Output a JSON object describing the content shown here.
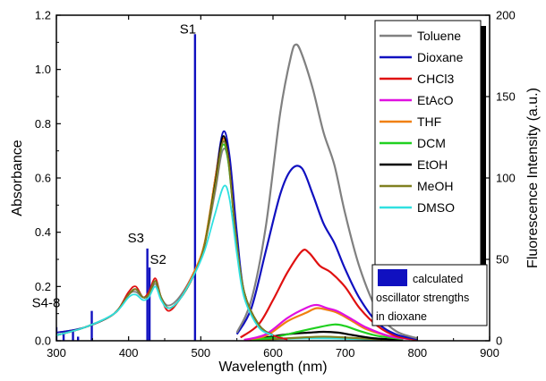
{
  "chart_data": {
    "type": "line",
    "xlabel": "Wavelength (nm)",
    "ylabel": "Absorbance",
    "y2label": "Fluorescence Intensity (a.u.)",
    "xlim": [
      300,
      900
    ],
    "ylim": [
      0,
      1.2
    ],
    "y2lim": [
      0,
      200
    ],
    "x_ticks": [
      300,
      400,
      500,
      600,
      700,
      800,
      900
    ],
    "x_tick_labels": [
      "300",
      "400",
      "500",
      "600",
      "700",
      "800",
      "900"
    ],
    "y_ticks": [
      0,
      0.2,
      0.4,
      0.6,
      0.8,
      1.0,
      1.2
    ],
    "y_tick_labels": [
      "0.0",
      "0.2",
      "0.4",
      "0.6",
      "0.8",
      "1.0",
      "1.2"
    ],
    "y2_ticks": [
      0,
      50,
      100,
      150,
      200
    ],
    "y2_tick_labels": [
      "0",
      "50",
      "100",
      "150",
      "200"
    ],
    "grid": false,
    "legend_position": "top-right",
    "series": [
      {
        "name": "Toluene",
        "color": "#808080",
        "absorption": [
          [
            300,
            0.03
          ],
          [
            340,
            0.05
          ],
          [
            380,
            0.1
          ],
          [
            400,
            0.17
          ],
          [
            410,
            0.18
          ],
          [
            420,
            0.16
          ],
          [
            428,
            0.17
          ],
          [
            437,
            0.21
          ],
          [
            445,
            0.16
          ],
          [
            455,
            0.13
          ],
          [
            470,
            0.16
          ],
          [
            490,
            0.25
          ],
          [
            505,
            0.35
          ],
          [
            520,
            0.55
          ],
          [
            530,
            0.7
          ],
          [
            538,
            0.66
          ],
          [
            548,
            0.4
          ],
          [
            560,
            0.18
          ],
          [
            580,
            0.06
          ],
          [
            600,
            0.02
          ],
          [
            620,
            0.005
          ]
        ],
        "fluorescence": [
          [
            550,
            5
          ],
          [
            570,
            25
          ],
          [
            590,
            70
          ],
          [
            610,
            140
          ],
          [
            625,
            175
          ],
          [
            632,
            182
          ],
          [
            640,
            176
          ],
          [
            655,
            155
          ],
          [
            670,
            128
          ],
          [
            685,
            108
          ],
          [
            700,
            78
          ],
          [
            720,
            45
          ],
          [
            745,
            18
          ],
          [
            770,
            6
          ],
          [
            800,
            1.5
          ]
        ]
      },
      {
        "name": "Dioxane",
        "color": "#1010c0",
        "absorption": [
          [
            300,
            0.03
          ],
          [
            340,
            0.05
          ],
          [
            380,
            0.1
          ],
          [
            400,
            0.17
          ],
          [
            410,
            0.19
          ],
          [
            420,
            0.16
          ],
          [
            428,
            0.17
          ],
          [
            437,
            0.22
          ],
          [
            445,
            0.16
          ],
          [
            455,
            0.12
          ],
          [
            470,
            0.15
          ],
          [
            490,
            0.25
          ],
          [
            505,
            0.35
          ],
          [
            520,
            0.6
          ],
          [
            531,
            0.77
          ],
          [
            540,
            0.68
          ],
          [
            550,
            0.4
          ],
          [
            560,
            0.18
          ],
          [
            580,
            0.06
          ],
          [
            600,
            0.02
          ],
          [
            620,
            0.005
          ]
        ],
        "fluorescence": [
          [
            550,
            4
          ],
          [
            570,
            20
          ],
          [
            590,
            55
          ],
          [
            610,
            90
          ],
          [
            625,
            105
          ],
          [
            640,
            106
          ],
          [
            655,
            90
          ],
          [
            670,
            72
          ],
          [
            685,
            60
          ],
          [
            700,
            44
          ],
          [
            720,
            26
          ],
          [
            745,
            11
          ],
          [
            770,
            4
          ],
          [
            800,
            1
          ]
        ]
      },
      {
        "name": "CHCl3",
        "color": "#e01010",
        "absorption": [
          [
            300,
            0.02
          ],
          [
            340,
            0.05
          ],
          [
            380,
            0.1
          ],
          [
            400,
            0.18
          ],
          [
            410,
            0.2
          ],
          [
            420,
            0.16
          ],
          [
            428,
            0.18
          ],
          [
            437,
            0.23
          ],
          [
            445,
            0.16
          ],
          [
            455,
            0.11
          ],
          [
            470,
            0.15
          ],
          [
            490,
            0.25
          ],
          [
            505,
            0.35
          ],
          [
            520,
            0.58
          ],
          [
            530,
            0.74
          ],
          [
            538,
            0.68
          ],
          [
            548,
            0.4
          ],
          [
            560,
            0.18
          ],
          [
            580,
            0.06
          ],
          [
            600,
            0.02
          ],
          [
            620,
            0.005
          ]
        ],
        "fluorescence": [
          [
            555,
            2
          ],
          [
            580,
            10
          ],
          [
            600,
            25
          ],
          [
            620,
            42
          ],
          [
            640,
            55
          ],
          [
            650,
            54
          ],
          [
            665,
            46
          ],
          [
            680,
            42
          ],
          [
            700,
            33
          ],
          [
            720,
            20
          ],
          [
            745,
            9
          ],
          [
            770,
            3
          ],
          [
            800,
            0.5
          ]
        ]
      },
      {
        "name": "EtAcO",
        "color": "#e010e0",
        "absorption": [
          [
            300,
            0.02
          ],
          [
            340,
            0.05
          ],
          [
            380,
            0.1
          ],
          [
            400,
            0.17
          ],
          [
            410,
            0.19
          ],
          [
            420,
            0.16
          ],
          [
            428,
            0.17
          ],
          [
            437,
            0.22
          ],
          [
            445,
            0.16
          ],
          [
            455,
            0.12
          ],
          [
            470,
            0.15
          ],
          [
            490,
            0.24
          ],
          [
            505,
            0.35
          ],
          [
            520,
            0.58
          ],
          [
            530,
            0.73
          ],
          [
            538,
            0.67
          ],
          [
            548,
            0.4
          ],
          [
            560,
            0.18
          ],
          [
            580,
            0.06
          ],
          [
            600,
            0.02
          ]
        ],
        "fluorescence": [
          [
            560,
            0.5
          ],
          [
            590,
            4
          ],
          [
            620,
            14
          ],
          [
            645,
            20
          ],
          [
            660,
            22
          ],
          [
            675,
            20
          ],
          [
            690,
            18
          ],
          [
            710,
            13
          ],
          [
            730,
            8
          ],
          [
            760,
            3
          ],
          [
            790,
            1
          ]
        ]
      },
      {
        "name": "THF",
        "color": "#f08010",
        "absorption": [
          [
            300,
            0.02
          ],
          [
            340,
            0.05
          ],
          [
            380,
            0.1
          ],
          [
            400,
            0.17
          ],
          [
            410,
            0.19
          ],
          [
            420,
            0.16
          ],
          [
            428,
            0.17
          ],
          [
            437,
            0.22
          ],
          [
            445,
            0.16
          ],
          [
            455,
            0.12
          ],
          [
            470,
            0.15
          ],
          [
            490,
            0.25
          ],
          [
            505,
            0.36
          ],
          [
            520,
            0.6
          ],
          [
            530,
            0.74
          ],
          [
            538,
            0.68
          ],
          [
            548,
            0.4
          ],
          [
            560,
            0.18
          ],
          [
            580,
            0.06
          ],
          [
            600,
            0.02
          ]
        ],
        "fluorescence": [
          [
            560,
            0.5
          ],
          [
            590,
            3
          ],
          [
            620,
            12
          ],
          [
            645,
            17
          ],
          [
            660,
            20
          ],
          [
            675,
            19
          ],
          [
            690,
            17
          ],
          [
            710,
            12
          ],
          [
            730,
            7
          ],
          [
            760,
            3
          ],
          [
            790,
            1
          ]
        ]
      },
      {
        "name": "DCM",
        "color": "#20d020",
        "absorption": [
          [
            300,
            0.02
          ],
          [
            340,
            0.05
          ],
          [
            380,
            0.1
          ],
          [
            400,
            0.17
          ],
          [
            410,
            0.19
          ],
          [
            420,
            0.16
          ],
          [
            428,
            0.17
          ],
          [
            437,
            0.22
          ],
          [
            445,
            0.16
          ],
          [
            455,
            0.12
          ],
          [
            470,
            0.15
          ],
          [
            490,
            0.24
          ],
          [
            505,
            0.35
          ],
          [
            520,
            0.58
          ],
          [
            530,
            0.72
          ],
          [
            538,
            0.66
          ],
          [
            548,
            0.4
          ],
          [
            560,
            0.18
          ],
          [
            580,
            0.06
          ],
          [
            600,
            0.02
          ]
        ],
        "fluorescence": [
          [
            570,
            0.5
          ],
          [
            600,
            2
          ],
          [
            630,
            5
          ],
          [
            660,
            8
          ],
          [
            685,
            10
          ],
          [
            700,
            9
          ],
          [
            720,
            6
          ],
          [
            745,
            3
          ],
          [
            780,
            1
          ]
        ]
      },
      {
        "name": "EtOH",
        "color": "#000000",
        "absorption": [
          [
            300,
            0.02
          ],
          [
            340,
            0.05
          ],
          [
            380,
            0.1
          ],
          [
            400,
            0.17
          ],
          [
            410,
            0.19
          ],
          [
            420,
            0.16
          ],
          [
            428,
            0.17
          ],
          [
            437,
            0.22
          ],
          [
            445,
            0.16
          ],
          [
            455,
            0.12
          ],
          [
            470,
            0.15
          ],
          [
            490,
            0.24
          ],
          [
            505,
            0.35
          ],
          [
            520,
            0.58
          ],
          [
            530,
            0.75
          ],
          [
            538,
            0.68
          ],
          [
            548,
            0.4
          ],
          [
            560,
            0.18
          ],
          [
            580,
            0.06
          ],
          [
            600,
            0.02
          ]
        ],
        "fluorescence": [
          [
            560,
            0.5
          ],
          [
            590,
            2
          ],
          [
            620,
            4
          ],
          [
            650,
            5
          ],
          [
            670,
            5.5
          ],
          [
            690,
            5
          ],
          [
            710,
            3.5
          ],
          [
            740,
            1.5
          ],
          [
            780,
            0.5
          ]
        ]
      },
      {
        "name": "MeOH",
        "color": "#808020",
        "absorption": [
          [
            300,
            0.02
          ],
          [
            340,
            0.05
          ],
          [
            380,
            0.1
          ],
          [
            400,
            0.17
          ],
          [
            410,
            0.19
          ],
          [
            420,
            0.16
          ],
          [
            428,
            0.17
          ],
          [
            437,
            0.22
          ],
          [
            445,
            0.16
          ],
          [
            455,
            0.12
          ],
          [
            470,
            0.15
          ],
          [
            490,
            0.24
          ],
          [
            505,
            0.35
          ],
          [
            520,
            0.57
          ],
          [
            530,
            0.73
          ],
          [
            538,
            0.67
          ],
          [
            548,
            0.4
          ],
          [
            560,
            0.18
          ],
          [
            580,
            0.06
          ],
          [
            600,
            0.02
          ]
        ],
        "fluorescence": [
          [
            570,
            0.3
          ],
          [
            600,
            1
          ],
          [
            640,
            2
          ],
          [
            670,
            2.5
          ],
          [
            700,
            2
          ],
          [
            740,
            1
          ],
          [
            780,
            0.3
          ]
        ]
      },
      {
        "name": "DMSO",
        "color": "#30e0e0",
        "absorption": [
          [
            300,
            0.02
          ],
          [
            340,
            0.05
          ],
          [
            380,
            0.1
          ],
          [
            400,
            0.16
          ],
          [
            410,
            0.17
          ],
          [
            420,
            0.15
          ],
          [
            428,
            0.16
          ],
          [
            437,
            0.2
          ],
          [
            445,
            0.15
          ],
          [
            455,
            0.12
          ],
          [
            470,
            0.15
          ],
          [
            490,
            0.24
          ],
          [
            505,
            0.33
          ],
          [
            520,
            0.47
          ],
          [
            532,
            0.57
          ],
          [
            540,
            0.52
          ],
          [
            550,
            0.32
          ],
          [
            560,
            0.16
          ],
          [
            580,
            0.05
          ],
          [
            600,
            0.02
          ]
        ],
        "fluorescence": [
          [
            570,
            0.3
          ],
          [
            600,
            1
          ],
          [
            640,
            1.5
          ],
          [
            680,
            1.5
          ],
          [
            720,
            1
          ],
          [
            760,
            0.3
          ]
        ]
      }
    ],
    "oscillator_strengths": {
      "color": "#1010c0",
      "legend_label": [
        "calculated",
        "oscillator strengths",
        "in dioxane"
      ],
      "bars": [
        [
          300,
          0.05
        ],
        [
          310,
          0.03
        ],
        [
          323,
          0.04
        ],
        [
          330,
          0.015
        ],
        [
          349,
          0.11
        ],
        [
          426,
          0.34
        ],
        [
          429,
          0.27
        ],
        [
          492,
          1.13
        ]
      ]
    },
    "annotations": [
      {
        "text": "S1",
        "x": 492,
        "y": 1.12
      },
      {
        "text": "S2",
        "x": 436,
        "y": 0.27
      },
      {
        "text": "S3",
        "x": 425,
        "y": 0.35
      },
      {
        "text": "S4-8",
        "x": 318,
        "y": 0.11
      }
    ]
  }
}
